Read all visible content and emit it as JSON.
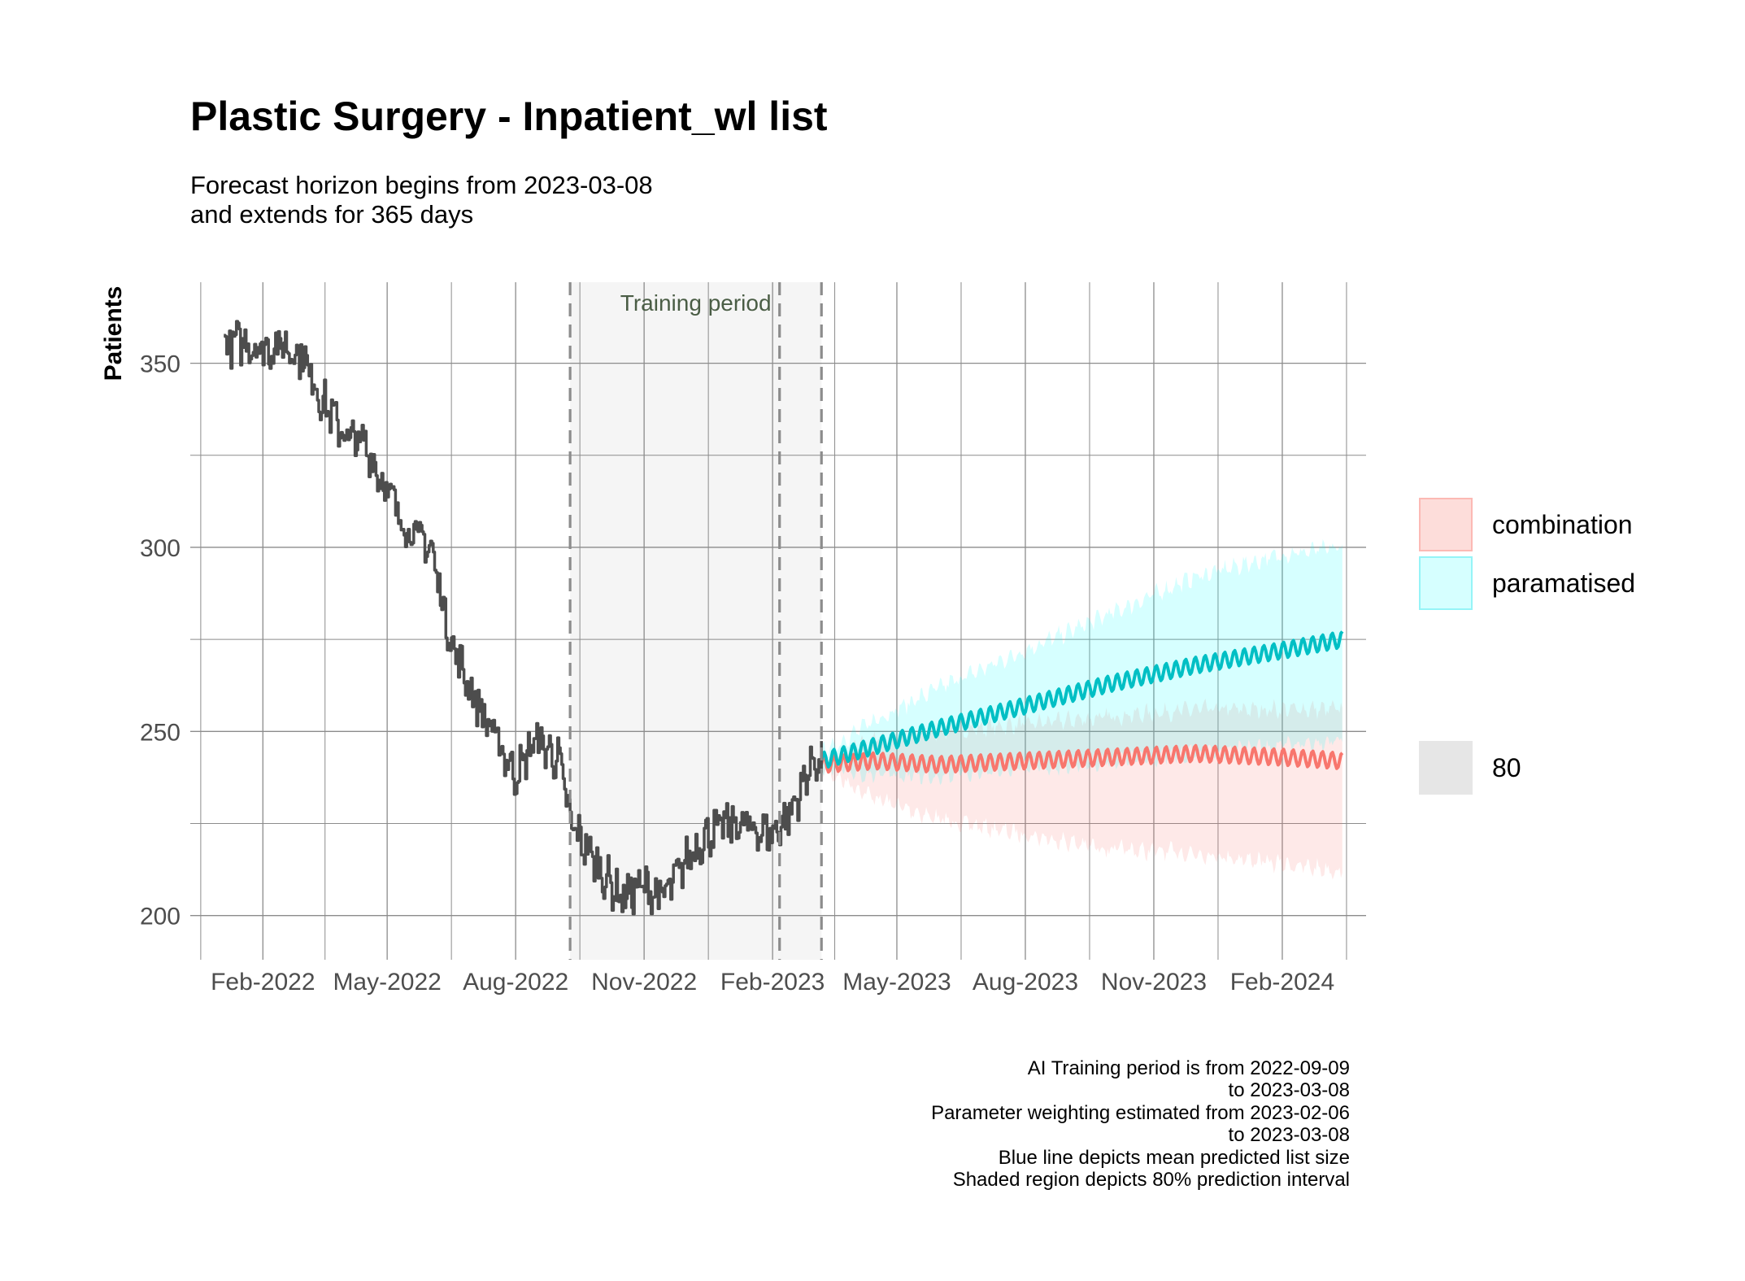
{
  "title": "Plastic Surgery - Inpatient_wl list",
  "subtitle": [
    "Forecast horizon begins from 2023-03-08",
    "and extends for 365 days"
  ],
  "caption": [
    "AI Training period is from 2022-09-09",
    "to 2023-03-08",
    "Parameter weighting estimated from 2023-02-06",
    "to 2023-03-08",
    "Blue line depicts mean predicted list size",
    "Shaded region depicts 80% prediction interval"
  ],
  "colors": {
    "historical": "#4d4d4d",
    "combination": "#F8766D",
    "combination_fill": "#F8766D",
    "paramatised": "#00BFC4",
    "paramatised_fill": "#00FFFF",
    "grid": "#8c8c8c",
    "training_shade": "#f2f2f2",
    "vline": "#8c8c8c"
  },
  "legend": {
    "fill_items": [
      {
        "label": "combination",
        "color": "#F8766D"
      },
      {
        "label": "paramatised",
        "color": "#00FFFF"
      }
    ],
    "level_items": [
      {
        "label": "80",
        "color": "#e6e6e6"
      }
    ]
  },
  "chart_data": {
    "type": "line",
    "title": "Plastic Surgery - Inpatient_wl list",
    "xlabel": "",
    "ylabel": "Patients",
    "x_range": [
      "2021-12-11",
      "2024-04-01"
    ],
    "ylim": [
      188,
      372
    ],
    "y_ticks": [
      200,
      250,
      300,
      350
    ],
    "x_ticks": [
      {
        "date": "2022-02-01",
        "label": "Feb-2022"
      },
      {
        "date": "2022-05-01",
        "label": "May-2022"
      },
      {
        "date": "2022-08-01",
        "label": "Aug-2022"
      },
      {
        "date": "2022-11-01",
        "label": "Nov-2022"
      },
      {
        "date": "2023-02-01",
        "label": "Feb-2023"
      },
      {
        "date": "2023-05-01",
        "label": "May-2023"
      },
      {
        "date": "2023-08-01",
        "label": "Aug-2023"
      },
      {
        "date": "2023-11-01",
        "label": "Nov-2023"
      },
      {
        "date": "2024-02-01",
        "label": "Feb-2024"
      }
    ],
    "grid": true,
    "legend_position": "right",
    "training_period": {
      "start": "2022-09-09",
      "end": "2023-03-08",
      "label": "Training period"
    },
    "vlines": [
      "2022-09-09",
      "2023-02-06",
      "2023-03-08"
    ],
    "historical": {
      "x": [
        "2022-01-04",
        "2022-01-15",
        "2022-02-01",
        "2022-02-15",
        "2022-03-01",
        "2022-03-15",
        "2022-04-01",
        "2022-04-15",
        "2022-05-01",
        "2022-05-15",
        "2022-06-01",
        "2022-06-15",
        "2022-07-01",
        "2022-07-15",
        "2022-08-01",
        "2022-08-15",
        "2022-09-01",
        "2022-09-09",
        "2022-10-01",
        "2022-10-15",
        "2022-11-01",
        "2022-11-15",
        "2022-12-01",
        "2022-12-15",
        "2023-01-01",
        "2023-01-15",
        "2023-02-01",
        "2023-02-15",
        "2023-03-01",
        "2023-03-08"
      ],
      "y": [
        355,
        356,
        354,
        355,
        352,
        340,
        330,
        328,
        315,
        305,
        300,
        275,
        260,
        250,
        238,
        248,
        242,
        225,
        212,
        205,
        208,
        205,
        215,
        222,
        225,
        224,
        222,
        229,
        242,
        241
      ]
    },
    "series": [
      {
        "name": "combination",
        "x": [
          "2023-03-08",
          "2023-04-15",
          "2023-06-01",
          "2023-08-01",
          "2023-10-01",
          "2023-12-01",
          "2024-02-01",
          "2024-03-15"
        ],
        "mean": [
          241,
          242,
          241,
          242,
          243,
          244,
          243,
          242
        ],
        "lower": [
          240,
          232,
          226,
          222,
          218,
          217,
          214,
          212
        ],
        "upper": [
          242,
          248,
          250,
          252,
          254,
          256,
          256,
          256
        ]
      },
      {
        "name": "paramatised",
        "x": [
          "2023-03-08",
          "2023-04-15",
          "2023-06-01",
          "2023-08-01",
          "2023-10-01",
          "2023-12-01",
          "2024-02-01",
          "2024-03-15"
        ],
        "mean": [
          242,
          246,
          251,
          257,
          263,
          268,
          272,
          275
        ],
        "lower": [
          241,
          238,
          238,
          240,
          242,
          244,
          246,
          248
        ],
        "upper": [
          244,
          253,
          262,
          272,
          282,
          292,
          298,
          300
        ]
      }
    ]
  }
}
